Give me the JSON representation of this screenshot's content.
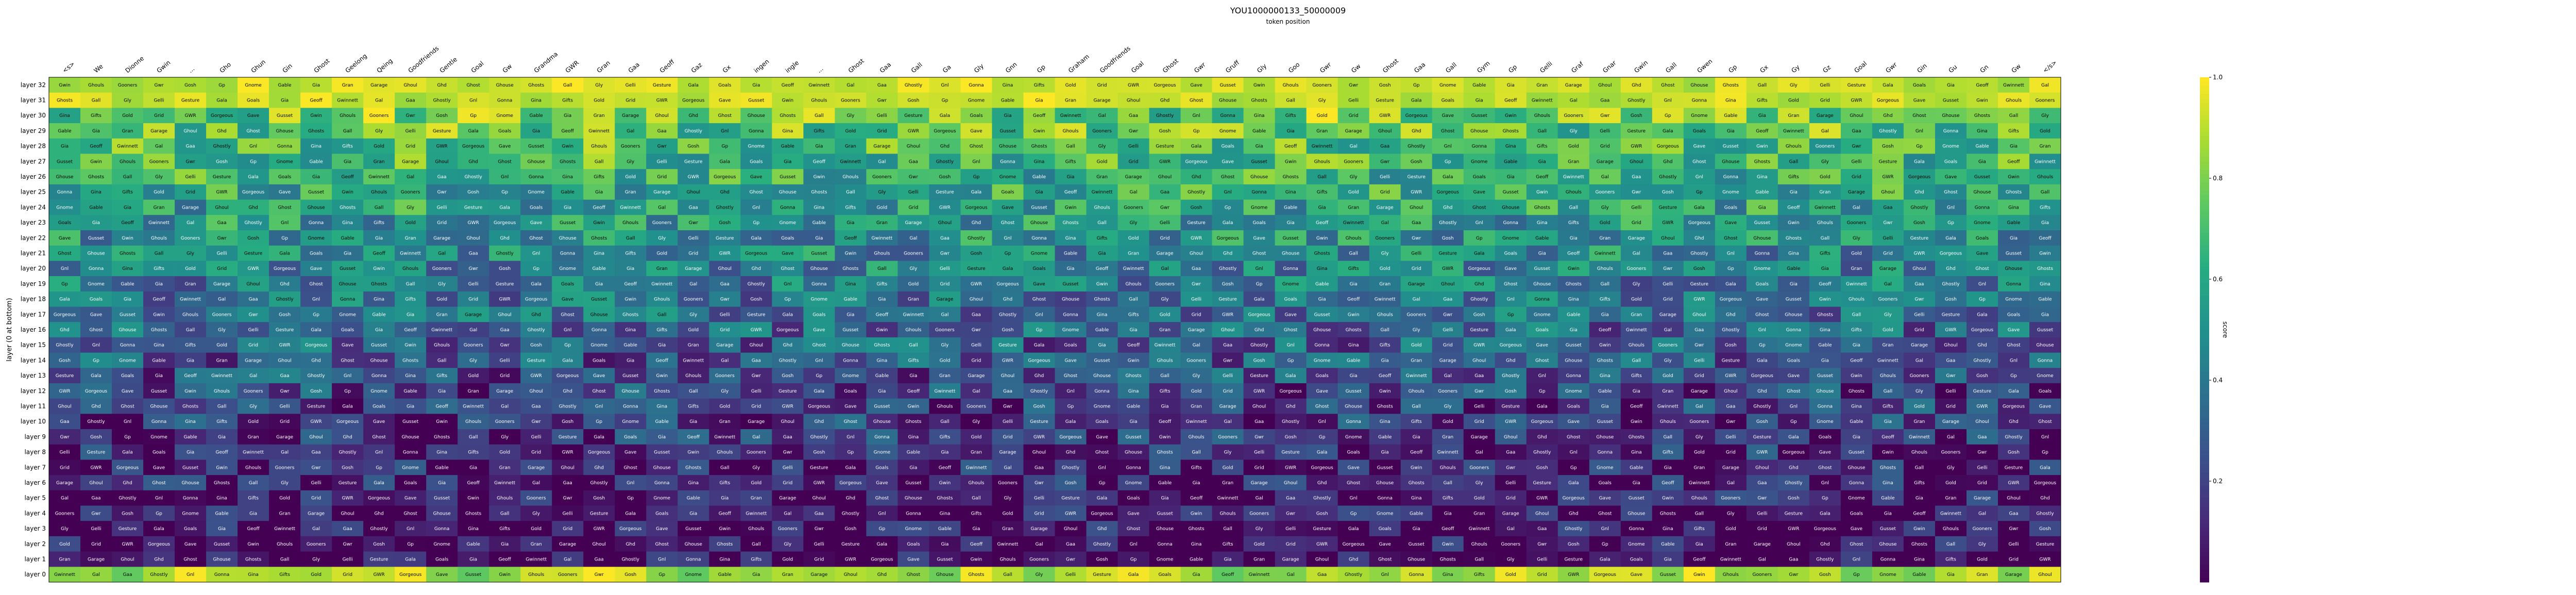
{
  "chart_data": {
    "type": "heatmap",
    "title": "YOU1000000133_50000009",
    "xlabel": "token position",
    "ylabel": "layer (0 at bottom)",
    "colorbar_label": "score",
    "colorbar_ticks": [
      "0.2",
      "0.4",
      "0.6",
      "0.8",
      "1.0"
    ],
    "colormap": "viridis",
    "x_tokens": [
      "<s>",
      "We",
      "Dionne",
      "Gwin",
      "...",
      "Gho",
      "Ghun",
      "Gin",
      "Ghost",
      "Geelong",
      "Qeing",
      "Goodfriends",
      "Gentle",
      "Goal",
      "Gw",
      "Grandma",
      "GWR",
      "Gran",
      "Gaa",
      "Geoff",
      "Gaz",
      "Gx",
      "ingen",
      "ingle",
      "...",
      "Ghost",
      "Gaa",
      "Gall",
      "Ga",
      "Gly",
      "Gnn",
      "Gp",
      "Graham",
      "Goodfriends",
      "Goal",
      "Ghost",
      "Gwr",
      "Gruff",
      "Gly",
      "Goo",
      "Gwr",
      "Gw",
      "Ghost",
      "Gaa",
      "Gall",
      "Gym",
      "Gp",
      "Gelli",
      "Graf",
      "Gnar",
      "Gwin",
      "Gall",
      "Gwen",
      "Gp",
      "Gx",
      "Gy",
      "Gz",
      "Goal",
      "Gwr",
      "Gin",
      "Gu",
      "Gn",
      "Gw",
      "</s>"
    ],
    "layers": [
      "layer 32",
      "layer 31",
      "layer 30",
      "layer 29",
      "layer 28",
      "layer 27",
      "layer 26",
      "layer 25",
      "layer 24",
      "layer 23",
      "layer 22",
      "layer 21",
      "layer 20",
      "layer 19",
      "layer 18",
      "layer 17",
      "layer 16",
      "layer 15",
      "layer 14",
      "layer 13",
      "layer 12",
      "layer 11",
      "layer 10",
      "layer 9",
      "layer 8",
      "layer 7",
      "layer 6",
      "layer 5",
      "layer 4",
      "layer 3",
      "layer 2",
      "layer 1",
      "layer 0"
    ],
    "cell_vocab": [
      "Gwin",
      "Ghost",
      "Gaa",
      "Ghouls",
      "Ghouse",
      "Ghostly",
      "Gooners",
      "Ghosts",
      "Gnl",
      "Gwr",
      "Gall",
      "Gonna",
      "Gosh",
      "Gly",
      "Gina",
      "Gp",
      "Gelli",
      "Gifts",
      "Gnome",
      "Gesture",
      "Gold",
      "Gable",
      "Gala",
      "Grid",
      "Gia",
      "Goals",
      "GWR",
      "Gran",
      "Gia",
      "Gorgeous",
      "Garage",
      "Geoff",
      "Gave",
      "Ghoul",
      "Gwinnett",
      "Gusset",
      "Ghd",
      "Gal"
    ],
    "grid_note": "32 rows of tokens per layer; values estimated from viridis shading, 0 = dark purple, 1 = yellow",
    "value_range": [
      0,
      1
    ]
  }
}
